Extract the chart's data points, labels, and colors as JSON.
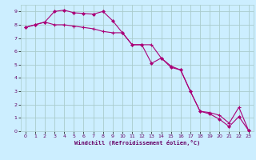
{
  "xlabel": "Windchill (Refroidissement éolien,°C)",
  "bg_color": "#cceeff",
  "grid_color": "#aacccc",
  "line_color": "#aa0077",
  "xlim": [
    -0.5,
    23.5
  ],
  "ylim": [
    0,
    9.5
  ],
  "xticks": [
    0,
    1,
    2,
    3,
    4,
    5,
    6,
    7,
    8,
    9,
    10,
    11,
    12,
    13,
    14,
    15,
    16,
    17,
    18,
    19,
    20,
    21,
    22,
    23
  ],
  "yticks": [
    0,
    1,
    2,
    3,
    4,
    5,
    6,
    7,
    8,
    9
  ],
  "line1_x": [
    0,
    1,
    2,
    3,
    4,
    5,
    6,
    7,
    8,
    9,
    10,
    11,
    12,
    13,
    14,
    15,
    16,
    17,
    18,
    19,
    20,
    21,
    22,
    23
  ],
  "line1_y": [
    7.8,
    8.0,
    8.2,
    8.0,
    8.0,
    7.9,
    7.8,
    7.7,
    7.5,
    7.4,
    7.4,
    6.5,
    6.5,
    6.5,
    5.5,
    4.9,
    4.6,
    3.0,
    1.5,
    1.4,
    1.2,
    0.6,
    1.8,
    0.05
  ],
  "line2_x": [
    0,
    1,
    2,
    3,
    4,
    5,
    6,
    7,
    8,
    9,
    10,
    11,
    12,
    13,
    14,
    15,
    16,
    17,
    18,
    19,
    20,
    21,
    22,
    23
  ],
  "line2_y": [
    7.8,
    8.0,
    8.2,
    9.0,
    9.1,
    8.9,
    8.85,
    8.8,
    9.0,
    8.3,
    7.4,
    6.5,
    6.5,
    5.1,
    5.5,
    4.8,
    4.6,
    3.0,
    1.5,
    1.3,
    0.9,
    0.35,
    1.1,
    0.05
  ]
}
